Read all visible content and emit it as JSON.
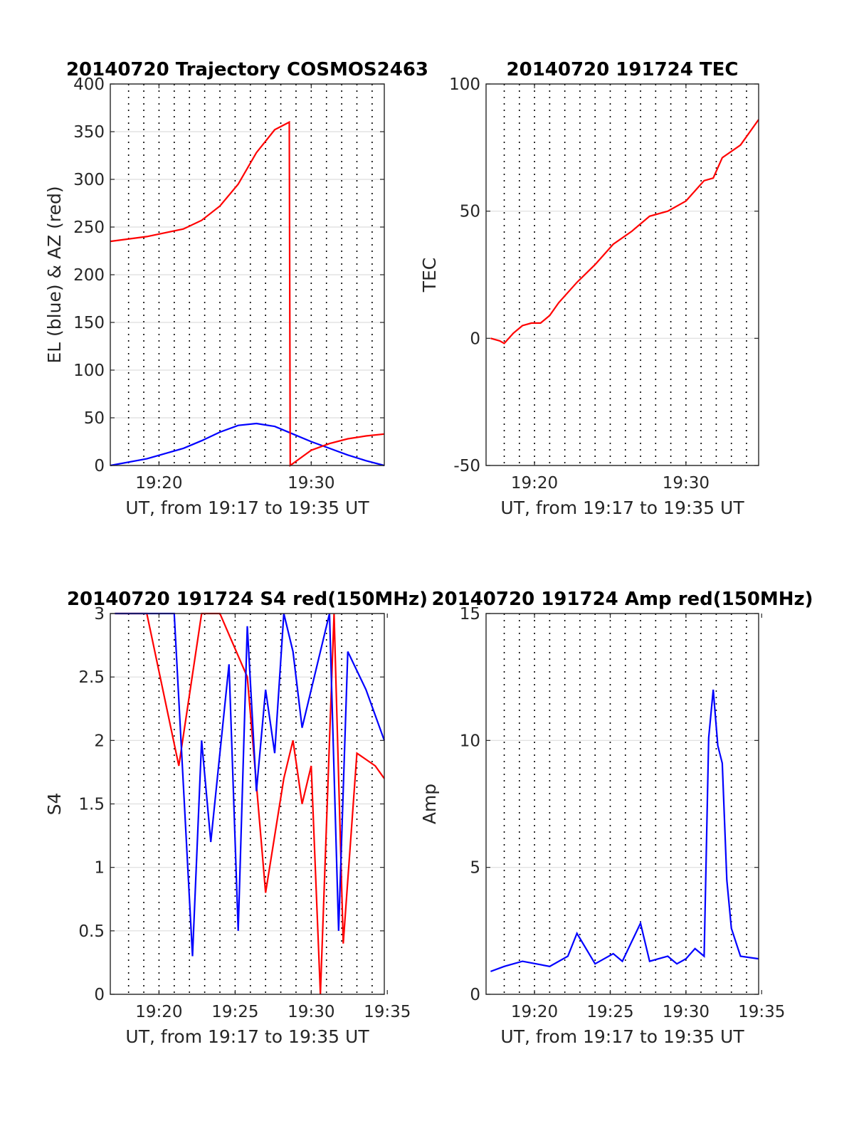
{
  "chart_data": [
    {
      "type": "line",
      "title": "20140720 Trajectory COSMOS2463",
      "xlabel": "UT, from 19:17 to 19:35 UT",
      "ylabel": "EL (blue) & AZ (red)",
      "xlim": [
        19.28,
        19.58
      ],
      "ylim": [
        0,
        400
      ],
      "yticks": [
        0,
        50,
        100,
        150,
        200,
        250,
        300,
        350,
        400
      ],
      "xticks": [
        {
          "v": 19.3333,
          "label": "19:20"
        },
        {
          "v": 19.5,
          "label": "19:30"
        }
      ],
      "grid": true,
      "series": [
        {
          "name": "EL",
          "color": "#0000ff",
          "x": [
            19.28,
            19.32,
            19.36,
            19.38,
            19.4,
            19.42,
            19.44,
            19.46,
            19.48,
            19.5,
            19.52,
            19.54,
            19.56,
            19.58
          ],
          "y": [
            0,
            7,
            18,
            26,
            35,
            42,
            44,
            41,
            33,
            25,
            18,
            11,
            5,
            0
          ]
        },
        {
          "name": "AZ",
          "color": "#ff0000",
          "x": [
            19.28,
            19.32,
            19.36,
            19.38,
            19.4,
            19.42,
            19.44,
            19.46,
            19.476,
            19.477,
            19.5,
            19.52,
            19.54,
            19.56,
            19.58
          ],
          "y": [
            235,
            240,
            248,
            257,
            272,
            295,
            328,
            352,
            360,
            0,
            16,
            23,
            28,
            31,
            33
          ]
        }
      ]
    },
    {
      "type": "line",
      "title": "20140720 191724 TEC",
      "xlabel": "UT, from 19:17 to 19:35 UT",
      "ylabel": "TEC",
      "xlim": [
        19.28,
        19.58
      ],
      "ylim": [
        -50,
        100
      ],
      "yticks": [
        -50,
        0,
        50,
        100
      ],
      "xticks": [
        {
          "v": 19.3333,
          "label": "19:20"
        },
        {
          "v": 19.5,
          "label": "19:30"
        }
      ],
      "grid": true,
      "series": [
        {
          "name": "TEC",
          "color": "#ff0000",
          "x": [
            19.285,
            19.295,
            19.3,
            19.31,
            19.32,
            19.33,
            19.34,
            19.35,
            19.36,
            19.38,
            19.4,
            19.42,
            19.44,
            19.46,
            19.48,
            19.5,
            19.52,
            19.53,
            19.54,
            19.56,
            19.58
          ],
          "y": [
            0,
            -1,
            -2,
            2,
            5,
            6,
            6,
            9,
            14,
            22,
            29,
            37,
            42,
            48,
            50,
            54,
            62,
            63,
            71,
            76,
            86
          ]
        }
      ]
    },
    {
      "type": "line",
      "title": "20140720 191724 S4 red(150MHz)",
      "xlabel": "UT, from 19:17 to 19:35 UT",
      "ylabel": "S4",
      "xlim": [
        19.28,
        19.58
      ],
      "ylim": [
        0,
        3
      ],
      "yticks": [
        0,
        0.5,
        1,
        1.5,
        2,
        2.5,
        3
      ],
      "xticks": [
        {
          "v": 19.3333,
          "label": "19:20"
        },
        {
          "v": 19.4167,
          "label": "19:25"
        },
        {
          "v": 19.5,
          "label": "19:30"
        },
        {
          "v": 19.5833,
          "label": "19:35"
        }
      ],
      "grid": true,
      "series": [
        {
          "name": "",
          "color": "#ff0000",
          "x": [
            19.285,
            19.32,
            19.355,
            19.38,
            19.4,
            19.43,
            19.45,
            19.47,
            19.48,
            19.49,
            19.5,
            19.51,
            19.525,
            19.535,
            19.55,
            19.57,
            19.58
          ],
          "y": [
            3,
            3,
            1.8,
            3,
            3,
            2.5,
            0.8,
            1.7,
            2.0,
            1.5,
            1.8,
            0,
            3,
            0.4,
            1.9,
            1.8,
            1.7
          ]
        },
        {
          "name": "",
          "color": "#0000ff",
          "x": [
            19.285,
            19.3,
            19.32,
            19.35,
            19.37,
            19.38,
            19.39,
            19.41,
            19.42,
            19.43,
            19.44,
            19.45,
            19.46,
            19.47,
            19.48,
            19.49,
            19.5,
            19.52,
            19.53,
            19.54,
            19.56,
            19.58
          ],
          "y": [
            3,
            3,
            3,
            3,
            0.3,
            2.0,
            1.2,
            2.6,
            0.5,
            2.9,
            1.6,
            2.4,
            1.9,
            3,
            2.7,
            2.1,
            2.4,
            3,
            0.5,
            2.7,
            2.4,
            2.0
          ]
        }
      ]
    },
    {
      "type": "line",
      "title": "20140720 191724 Amp red(150MHz)",
      "xlabel": "UT, from 19:17 to 19:35 UT",
      "ylabel": "Amp",
      "xlim": [
        19.28,
        19.58
      ],
      "ylim": [
        0,
        15
      ],
      "yticks": [
        0,
        5,
        10,
        15
      ],
      "xticks": [
        {
          "v": 19.3333,
          "label": "19:20"
        },
        {
          "v": 19.4167,
          "label": "19:25"
        },
        {
          "v": 19.5,
          "label": "19:30"
        },
        {
          "v": 19.5833,
          "label": "19:35"
        }
      ],
      "grid": true,
      "series": [
        {
          "name": "",
          "color": "#0000ff",
          "x": [
            19.285,
            19.3,
            19.32,
            19.35,
            19.37,
            19.38,
            19.4,
            19.42,
            19.43,
            19.45,
            19.46,
            19.48,
            19.49,
            19.5,
            19.51,
            19.52,
            19.525,
            19.53,
            19.535,
            19.54,
            19.545,
            19.55,
            19.56,
            19.58
          ],
          "y": [
            0.9,
            1.1,
            1.3,
            1.1,
            1.5,
            2.4,
            1.2,
            1.6,
            1.3,
            2.8,
            1.3,
            1.5,
            1.2,
            1.4,
            1.8,
            1.5,
            10.1,
            12.0,
            9.8,
            9.1,
            4.5,
            2.6,
            1.5,
            1.4
          ]
        }
      ]
    }
  ]
}
